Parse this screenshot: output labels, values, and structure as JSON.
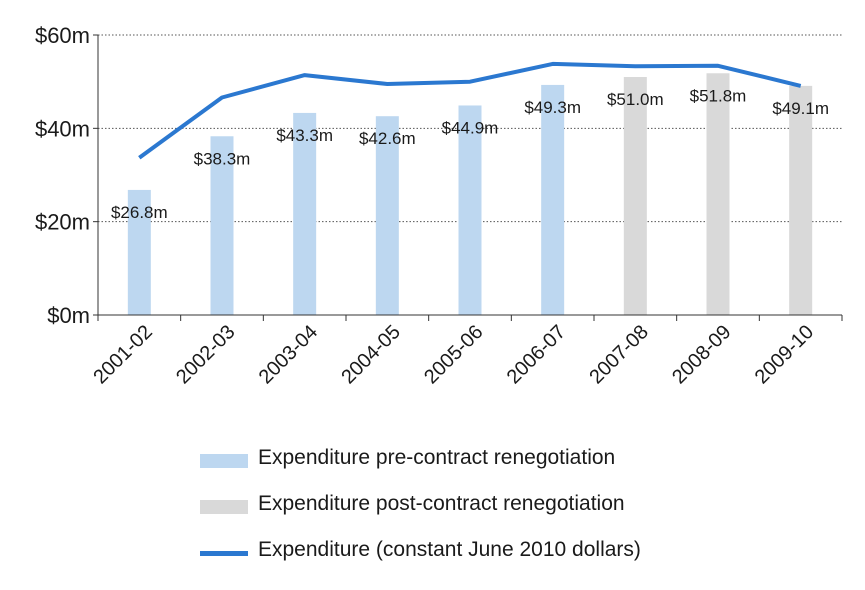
{
  "colors": {
    "pre": "#bdd7f0",
    "post": "#d9d9d9",
    "line": "#2b78d0",
    "grid": "#555555",
    "axis": "#333333",
    "text": "#1a1a1a"
  },
  "chart_data": {
    "type": "bar",
    "title": "",
    "xlabel": "",
    "ylabel": "",
    "ylim": [
      0,
      60
    ],
    "y_ticks": [
      {
        "value": 0,
        "label": "$0m"
      },
      {
        "value": 20,
        "label": "$20m"
      },
      {
        "value": 40,
        "label": "$40m"
      },
      {
        "value": 60,
        "label": "$60m"
      }
    ],
    "grid": "horizontal dotted",
    "legend_position": "bottom",
    "categories": [
      "2001-02",
      "2002-03",
      "2003-04",
      "2004-05",
      "2005-06",
      "2006-07",
      "2007-08",
      "2008-09",
      "2009-10"
    ],
    "series": [
      {
        "name": "Expenditure pre-contract renegotiation",
        "type": "bar",
        "values": [
          26.8,
          38.3,
          43.3,
          42.6,
          44.9,
          49.3,
          null,
          null,
          null
        ],
        "labels": [
          "$26.8m",
          "$38.3m",
          "$43.3m",
          "$42.6m",
          "$44.9m",
          "$49.3m",
          null,
          null,
          null
        ]
      },
      {
        "name": "Expenditure post-contract renegotiation",
        "type": "bar",
        "values": [
          null,
          null,
          null,
          null,
          null,
          null,
          51.0,
          51.8,
          49.1
        ],
        "labels": [
          null,
          null,
          null,
          null,
          null,
          null,
          "$51.0m",
          "$51.8m",
          "$49.1m"
        ]
      },
      {
        "name": "Expenditure (constant June 2010 dollars)",
        "type": "line",
        "values": [
          33.7,
          46.6,
          51.4,
          49.5,
          50.0,
          53.8,
          53.3,
          53.4,
          49.1
        ]
      }
    ]
  }
}
